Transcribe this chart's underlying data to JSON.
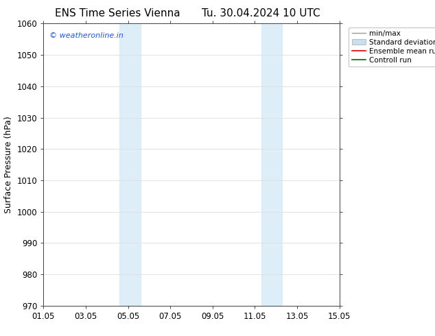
{
  "title": "ENS Time Series Vienna",
  "title2": "Tu. 30.04.2024 10 UTC",
  "ylabel": "Surface Pressure (hPa)",
  "ylim": [
    970,
    1060
  ],
  "yticks": [
    970,
    980,
    990,
    1000,
    1010,
    1020,
    1030,
    1040,
    1050,
    1060
  ],
  "xtick_labels": [
    "01.05",
    "03.05",
    "05.05",
    "07.05",
    "09.05",
    "11.05",
    "13.05",
    "15.05"
  ],
  "xtick_positions": [
    0,
    2,
    4,
    6,
    8,
    10,
    12,
    14
  ],
  "xlim": [
    0,
    14
  ],
  "shaded_regions": [
    {
      "start": 3.6,
      "end": 4.6
    },
    {
      "start": 10.3,
      "end": 11.3
    }
  ],
  "shaded_color": "#ddeef8",
  "background_color": "#ffffff",
  "watermark_text": "© weatheronline.in",
  "watermark_color": "#2255cc",
  "legend_entries": [
    {
      "label": "min/max",
      "color": "#999999",
      "lw": 1.0
    },
    {
      "label": "Standard deviation",
      "color": "#c8dff0",
      "lw": 6
    },
    {
      "label": "Ensemble mean run",
      "color": "#dd0000",
      "lw": 1.2
    },
    {
      "label": "Controll run",
      "color": "#006600",
      "lw": 1.2
    }
  ],
  "tick_fontsize": 8.5,
  "label_fontsize": 9,
  "title_fontsize": 11,
  "grid_color": "#dddddd"
}
